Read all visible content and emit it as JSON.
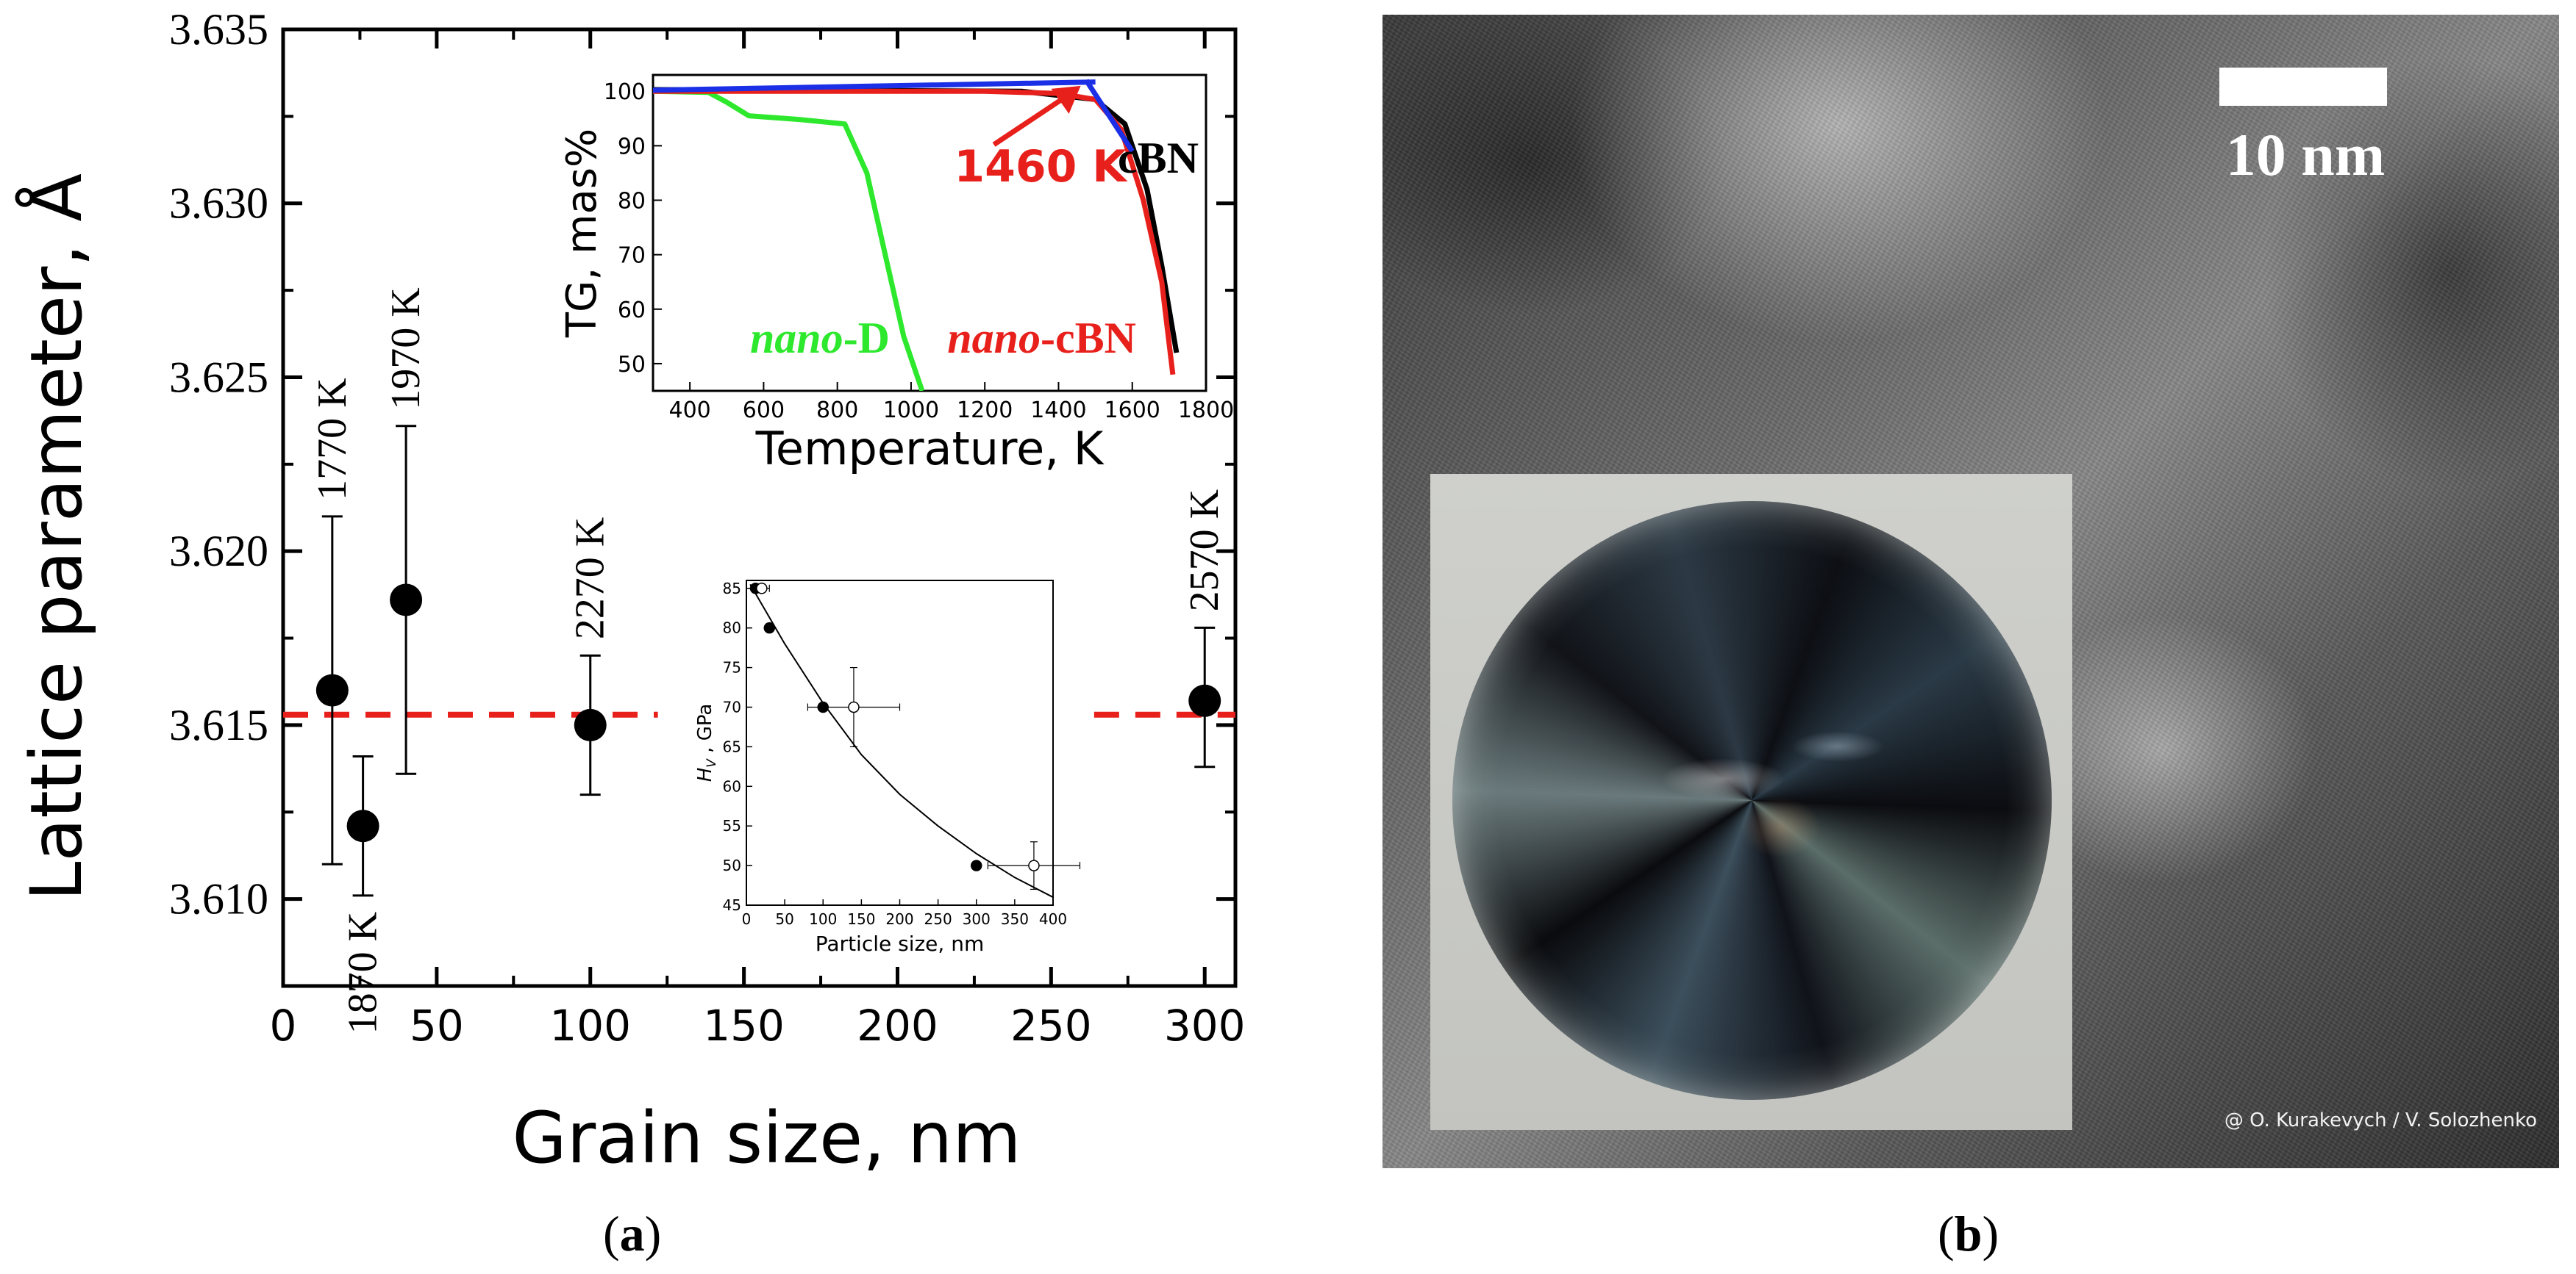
{
  "panel_a_label": {
    "open": "(",
    "letter": "a",
    "close": ")"
  },
  "panel_b_label": {
    "open": "(",
    "letter": "b",
    "close": ")"
  },
  "chart_data": [
    {
      "type": "scatter",
      "xlabel": "Grain size, nm",
      "ylabel": "Lattice parameter, Å",
      "xlim": [
        0,
        310
      ],
      "ylim": [
        3.6075,
        3.635
      ],
      "xticks": [
        "0",
        "50",
        "100",
        "150",
        "200",
        "250",
        "300"
      ],
      "yticks": [
        "3.610",
        "3.615",
        "3.620",
        "3.625",
        "3.630",
        "3.635"
      ],
      "points": [
        {
          "x": 16,
          "y": 3.616,
          "yerr_low": 3.611,
          "yerr_high": 3.621,
          "label": "1770 K",
          "label_side": "above"
        },
        {
          "x": 26,
          "y": 3.6121,
          "yerr_low": 3.6101,
          "yerr_high": 3.6141,
          "label": "1870 K",
          "label_side": "below"
        },
        {
          "x": 40,
          "y": 3.6186,
          "yerr_low": 3.6136,
          "yerr_high": 3.6236,
          "label": "1970 K",
          "label_side": "above"
        },
        {
          "x": 100,
          "y": 3.615,
          "yerr_low": 3.613,
          "yerr_high": 3.617,
          "label": "2270 K",
          "label_side": "above"
        },
        {
          "x": 300,
          "y": 3.6157,
          "yerr_low": 3.6138,
          "yerr_high": 3.6178,
          "label": "2570 K",
          "label_side": "above"
        }
      ],
      "reference_line": {
        "y": 3.6153,
        "segments": [
          [
            0,
            122
          ],
          [
            264,
            310
          ]
        ],
        "color": "#e8201c",
        "style": "dashed"
      },
      "marker_color": "#000000"
    },
    {
      "type": "line",
      "inset": "top",
      "xlabel": "Temperature, K",
      "ylabel": "TG, mas%",
      "xlim": [
        300,
        1800
      ],
      "ylim": [
        45,
        103
      ],
      "xticks": [
        "400",
        "600",
        "800",
        "1000",
        "1200",
        "1400",
        "1600",
        "1800"
      ],
      "yticks": [
        "50",
        "60",
        "70",
        "80",
        "90",
        "100"
      ],
      "series": [
        {
          "name": "nano-D",
          "color": "#2ee82e",
          "x": [
            300,
            450,
            500,
            560,
            700,
            820,
            880,
            930,
            980,
            1030
          ],
          "y": [
            100,
            99.8,
            98,
            95.5,
            94.8,
            94,
            85,
            70,
            55,
            45
          ]
        },
        {
          "name": "cBN",
          "color": "#000000",
          "x": [
            300,
            600,
            1000,
            1300,
            1500,
            1580,
            1640,
            1680,
            1720
          ],
          "y": [
            100.3,
            100.2,
            100.1,
            100,
            98.5,
            94,
            82,
            68,
            52
          ]
        },
        {
          "name": "nano-cBN",
          "color": "#e8201c",
          "x": [
            300,
            800,
            1200,
            1400,
            1500,
            1570,
            1630,
            1680,
            1710
          ],
          "y": [
            100,
            100,
            100,
            99.6,
            98.5,
            93,
            80,
            65,
            48
          ]
        },
        {
          "name": "",
          "color": "#1a2fe6",
          "x": [
            300,
            1500
          ],
          "y": [
            100.2,
            101.7
          ]
        },
        {
          "name": "",
          "color": "#1a2fe6",
          "x": [
            1475,
            1600
          ],
          "y": [
            102,
            89
          ]
        }
      ],
      "annotations": [
        {
          "text": "1460 K",
          "x": 1460,
          "y": 101,
          "color": "#e8201c"
        }
      ],
      "labels": [
        {
          "prefix": "",
          "suffix": "cBN",
          "prefix_color": "#000000",
          "suffix_color": "#000000"
        },
        {
          "prefix": "nano",
          "suffix": "-D",
          "prefix_color": "#2ee82e",
          "suffix_color": "#2ee82e"
        },
        {
          "prefix": "nano",
          "suffix": "-cBN",
          "prefix_color": "#e8201c",
          "suffix_color": "#e8201c"
        }
      ]
    },
    {
      "type": "scatter",
      "inset": "bottom",
      "xlabel": "Particle size, nm",
      "ylabel_main": "H",
      "ylabel_sub": "V",
      "ylabel_rest": " , GPa",
      "xlim": [
        0,
        400
      ],
      "ylim": [
        45,
        86
      ],
      "xticks": [
        "0",
        "50",
        "100",
        "150",
        "200",
        "250",
        "300",
        "350",
        "400"
      ],
      "yticks": [
        "45",
        "50",
        "55",
        "60",
        "65",
        "70",
        "75",
        "80",
        "85"
      ],
      "points": [
        {
          "x": 12,
          "y": 85,
          "filled": true,
          "xerr": 0,
          "yerr": 0
        },
        {
          "x": 30,
          "y": 80,
          "filled": true,
          "xerr": 0,
          "yerr": 0
        },
        {
          "x": 100,
          "y": 70,
          "filled": true,
          "xerr": 0,
          "yerr": 0
        },
        {
          "x": 300,
          "y": 50,
          "filled": true,
          "xerr": 0,
          "yerr": 0
        },
        {
          "x": 20,
          "y": 85,
          "filled": false,
          "xerr": 10,
          "yerr": 0
        },
        {
          "x": 140,
          "y": 70,
          "filled": false,
          "xerr": 60,
          "yerr": 5
        },
        {
          "x": 375,
          "y": 50,
          "filled": false,
          "xerr": 60,
          "yerr": 3
        }
      ],
      "fit": {
        "x": [
          5,
          50,
          100,
          150,
          200,
          250,
          300,
          350,
          400
        ],
        "y": [
          85.5,
          78,
          70.5,
          64,
          59,
          55,
          51.5,
          48.5,
          46
        ]
      }
    }
  ],
  "panel_b": {
    "scale_label": "10 nm",
    "credit": "@ O. Kurakevych / V. Solozhenko"
  }
}
